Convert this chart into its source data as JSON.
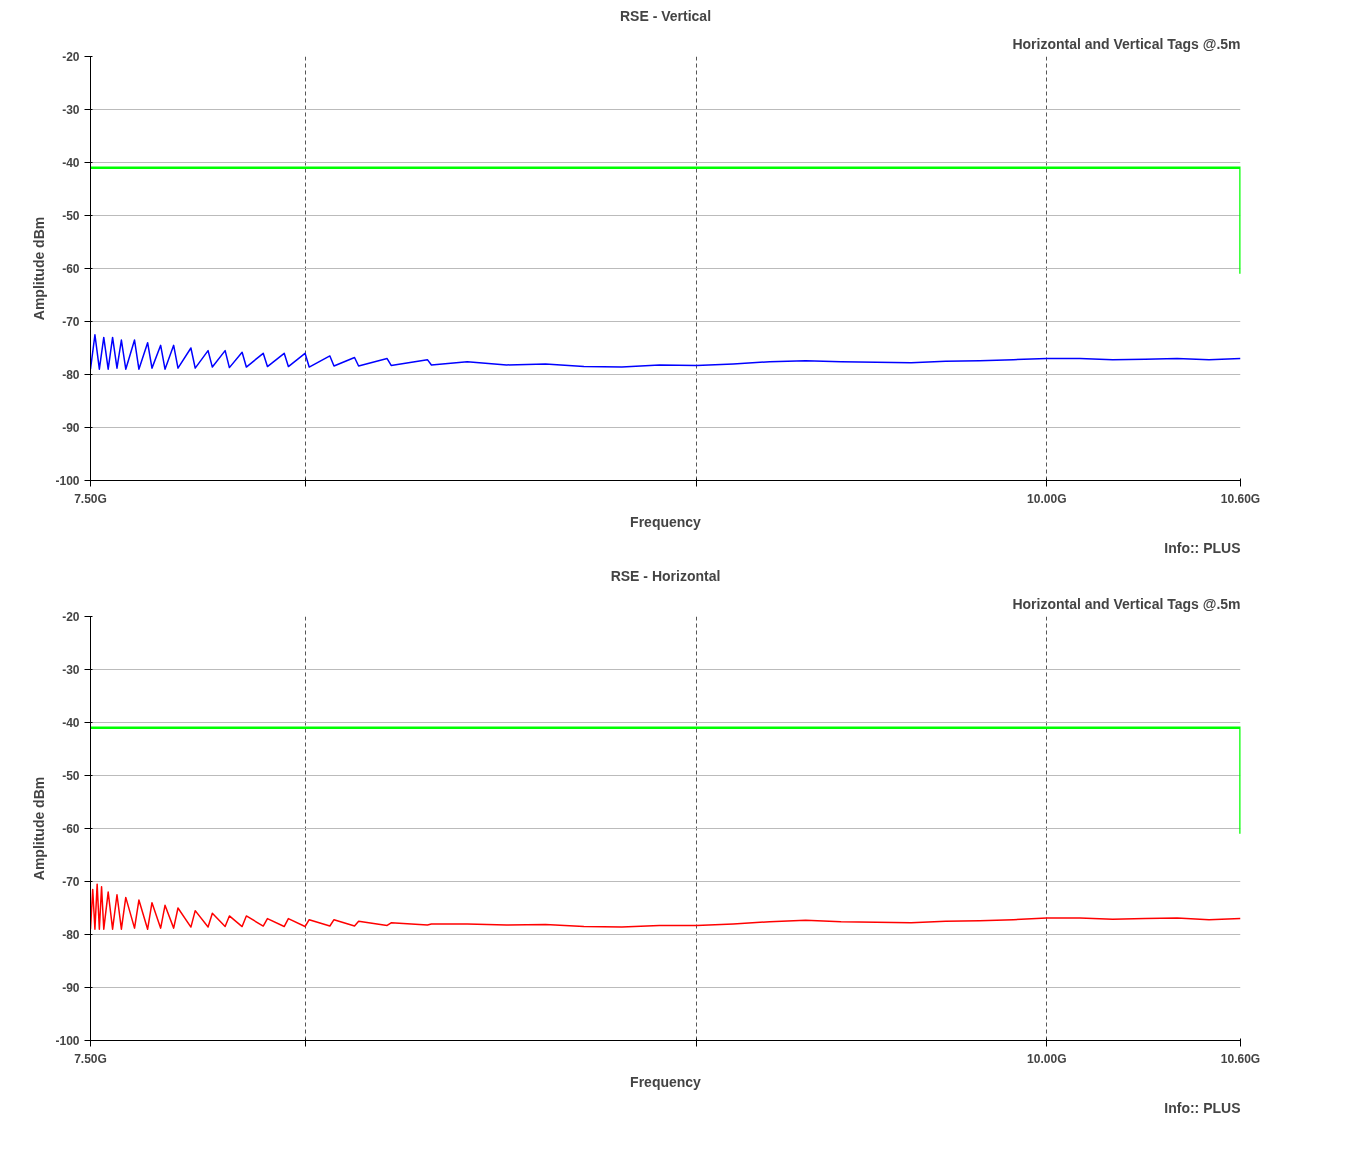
{
  "chart_data": [
    {
      "type": "line",
      "title": "RSE - Vertical",
      "subtitle": "Horizontal and Vertical Tags @.5m",
      "xlabel": "Frequency",
      "ylabel": "Amplitude dBm",
      "annotations": [
        "Info:: PLUS"
      ],
      "log": "x",
      "xlim": [
        7.5,
        10.6
      ],
      "xticks": [
        {
          "value": 7.5,
          "label": "7.50G"
        },
        {
          "value": 8,
          "label": null
        },
        {
          "value": 9,
          "label": null
        },
        {
          "value": 10,
          "label": "10.00G"
        },
        {
          "value": 10.6,
          "label": "10.60G"
        }
      ],
      "ylim": [
        -100,
        -20
      ],
      "yticks": [
        -100,
        -90,
        -80,
        -70,
        -60,
        -50,
        -40,
        -30,
        -20
      ],
      "grid": true,
      "series": [
        {
          "color": "#00ff00",
          "x": [
            7.5,
            10.6,
            10.6
          ],
          "values": [
            -41,
            -41,
            -61
          ]
        },
        {
          "color": "#0000ff",
          "x": [
            7.5,
            7.51,
            7.52,
            7.53,
            7.54,
            7.55,
            7.56,
            7.57,
            7.58,
            7.6,
            7.61,
            7.63,
            7.64,
            7.66,
            7.67,
            7.69,
            7.7,
            7.73,
            7.74,
            7.77,
            7.78,
            7.81,
            7.82,
            7.85,
            7.86,
            7.9,
            7.91,
            7.95,
            7.96,
            8.0,
            8.01,
            8.06,
            8.07,
            8.12,
            8.13,
            8.2,
            8.21,
            8.3,
            8.31,
            8.4,
            8.5,
            8.6,
            8.7,
            8.8,
            8.9,
            9.0,
            9.1,
            9.2,
            9.3,
            9.4,
            9.5,
            9.6,
            9.7,
            9.8,
            9.9,
            10.0,
            10.1,
            10.2,
            10.3,
            10.4,
            10.5,
            10.6
          ],
          "values": [
            -79,
            -72.5,
            -79,
            -73,
            -79,
            -73,
            -78.8,
            -73.5,
            -79,
            -73.5,
            -79,
            -74,
            -78.8,
            -74.5,
            -79,
            -74.5,
            -78.8,
            -75,
            -78.8,
            -75.5,
            -78.6,
            -75.5,
            -78.7,
            -75.8,
            -78.6,
            -76,
            -78.5,
            -76,
            -78.5,
            -76,
            -78.6,
            -76.5,
            -78.4,
            -76.8,
            -78.4,
            -77,
            -78.3,
            -77.2,
            -78.2,
            -77.6,
            -78.2,
            -78,
            -78.5,
            -78.6,
            -78.2,
            -78.3,
            -78,
            -77.6,
            -77.4,
            -77.6,
            -77.7,
            -77.8,
            -77.5,
            -77.4,
            -77.2,
            -77,
            -77,
            -77.2,
            -77.1,
            -77,
            -77.2,
            -77
          ]
        }
      ]
    },
    {
      "type": "line",
      "title": "RSE - Horizontal",
      "subtitle": "Horizontal and Vertical Tags @.5m",
      "xlabel": "Frequency",
      "ylabel": "Amplitude dBm",
      "annotations": [
        "Info:: PLUS"
      ],
      "log": "x",
      "xlim": [
        7.5,
        10.6
      ],
      "xticks": [
        {
          "value": 7.5,
          "label": "7.50G"
        },
        {
          "value": 8,
          "label": null
        },
        {
          "value": 9,
          "label": null
        },
        {
          "value": 10,
          "label": "10.00G"
        },
        {
          "value": 10.6,
          "label": "10.60G"
        }
      ],
      "ylim": [
        -100,
        -20
      ],
      "yticks": [
        -100,
        -90,
        -80,
        -70,
        -60,
        -50,
        -40,
        -30,
        -20
      ],
      "grid": true,
      "series": [
        {
          "color": "#00ff00",
          "x": [
            7.5,
            10.6,
            10.6
          ],
          "values": [
            -41,
            -41,
            -61
          ]
        },
        {
          "color": "#ff0000",
          "x": [
            7.5,
            7.505,
            7.51,
            7.515,
            7.52,
            7.525,
            7.53,
            7.54,
            7.55,
            7.56,
            7.57,
            7.58,
            7.6,
            7.61,
            7.63,
            7.64,
            7.66,
            7.67,
            7.69,
            7.7,
            7.73,
            7.74,
            7.77,
            7.78,
            7.81,
            7.82,
            7.85,
            7.86,
            7.9,
            7.91,
            7.95,
            7.96,
            8.0,
            8.01,
            8.06,
            8.07,
            8.12,
            8.13,
            8.2,
            8.21,
            8.3,
            8.31,
            8.4,
            8.5,
            8.6,
            8.7,
            8.8,
            8.9,
            9.0,
            9.1,
            9.2,
            9.3,
            9.4,
            9.5,
            9.6,
            9.7,
            9.8,
            9.9,
            10.0,
            10.1,
            10.2,
            10.3,
            10.4,
            10.5,
            10.6
          ],
          "values": [
            -79,
            -71.5,
            -79,
            -70.5,
            -79,
            -71,
            -79,
            -72,
            -79,
            -72.5,
            -79,
            -73,
            -78.8,
            -73.5,
            -79,
            -74,
            -78.8,
            -74.5,
            -78.8,
            -75,
            -78.6,
            -75.5,
            -78.6,
            -76,
            -78.5,
            -76.5,
            -78.5,
            -76.5,
            -78.4,
            -77,
            -78.5,
            -77,
            -78.5,
            -77.2,
            -78.4,
            -77.2,
            -78.4,
            -77.5,
            -78.3,
            -77.8,
            -78.2,
            -78,
            -78,
            -78.2,
            -78.1,
            -78.5,
            -78.6,
            -78.3,
            -78.3,
            -78,
            -77.6,
            -77.3,
            -77.6,
            -77.7,
            -77.8,
            -77.5,
            -77.4,
            -77.2,
            -76.9,
            -76.9,
            -77.1,
            -77,
            -76.9,
            -77.2,
            -77
          ]
        }
      ]
    }
  ]
}
